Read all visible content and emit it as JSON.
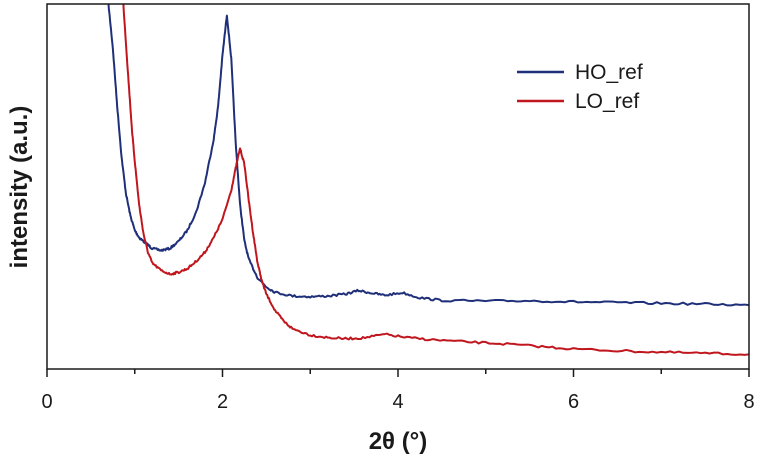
{
  "chart_data": {
    "type": "line",
    "xlabel": "2θ (°)",
    "ylabel": "intensity (a.u.)",
    "xlim": [
      0,
      8
    ],
    "ylim": [
      0,
      100
    ],
    "xticks": [
      "0",
      "2",
      "4",
      "6",
      "8"
    ],
    "y_tick_labels_shown": false,
    "grid": false,
    "legend_position": "top-right",
    "colors": {
      "HO_ref": "#1f2f7a",
      "LO_ref": "#c0161e"
    },
    "series": [
      {
        "name": "HO_ref",
        "x": [
          0.7,
          0.75,
          0.8,
          0.85,
          0.9,
          0.95,
          1.0,
          1.05,
          1.1,
          1.15,
          1.2,
          1.3,
          1.4,
          1.5,
          1.6,
          1.7,
          1.8,
          1.9,
          1.95,
          2.0,
          2.05,
          2.1,
          2.15,
          2.2,
          2.25,
          2.3,
          2.4,
          2.5,
          2.6,
          2.8,
          3.0,
          3.2,
          3.4,
          3.55,
          3.7,
          3.85,
          4.05,
          4.25,
          4.5,
          5.0,
          5.5,
          6.0,
          6.5,
          7.0,
          7.5,
          8.0
        ],
        "y": [
          100,
          88,
          72,
          58,
          48,
          42,
          38,
          36,
          35,
          34,
          33,
          32.5,
          33,
          35,
          38,
          43,
          51,
          63,
          72,
          86,
          97,
          85,
          62,
          45,
          35,
          30,
          25,
          22.5,
          21,
          20,
          19.8,
          20,
          20.5,
          21.5,
          20.8,
          20.2,
          20.9,
          19.5,
          18.8,
          18.6,
          18.7,
          18.4,
          18.2,
          18,
          17.8,
          17.5
        ]
      },
      {
        "name": "LO_ref",
        "x": [
          0.87,
          0.92,
          0.97,
          1.0,
          1.05,
          1.1,
          1.15,
          1.2,
          1.3,
          1.4,
          1.5,
          1.6,
          1.7,
          1.8,
          1.9,
          2.0,
          2.1,
          2.15,
          2.2,
          2.25,
          2.3,
          2.35,
          2.4,
          2.45,
          2.5,
          2.6,
          2.7,
          2.8,
          3.0,
          3.2,
          3.4,
          3.6,
          3.85,
          4.1,
          4.4,
          4.8,
          5.2,
          5.6,
          6.0,
          6.5,
          7.0,
          7.5,
          8.0
        ],
        "y": [
          100,
          82,
          65,
          57,
          45,
          37,
          32,
          29,
          27,
          26,
          26.5,
          27.5,
          29.5,
          32,
          36,
          41,
          49,
          55,
          60.5,
          56,
          46,
          37,
          29,
          24,
          20.5,
          16,
          13,
          11,
          9.3,
          8.6,
          8.3,
          8.5,
          9.5,
          8.6,
          8,
          7.4,
          6.9,
          6.2,
          5.5,
          5,
          4.6,
          4.3,
          4
        ]
      }
    ]
  }
}
